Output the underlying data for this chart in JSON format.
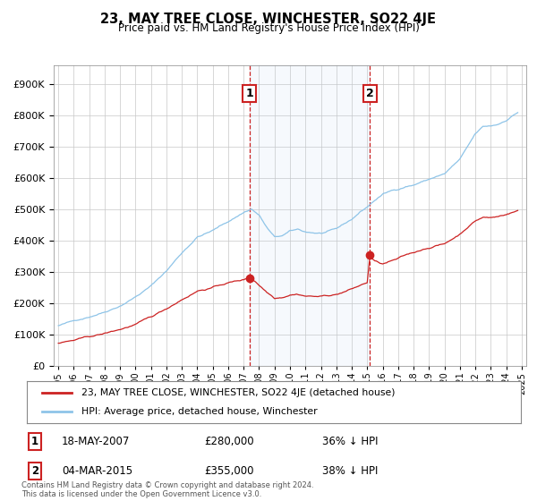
{
  "title": "23, MAY TREE CLOSE, WINCHESTER, SO22 4JE",
  "subtitle": "Price paid vs. HM Land Registry's House Price Index (HPI)",
  "hpi_color": "#8ec4e8",
  "price_color": "#cc2222",
  "bg_color": "#ffffff",
  "plot_bg_color": "#ffffff",
  "grid_color": "#c8c8c8",
  "purchase1_date": "18-MAY-2007",
  "purchase1_price": 280000,
  "purchase1_label": "36% ↓ HPI",
  "purchase2_date": "04-MAR-2015",
  "purchase2_price": 355000,
  "purchase2_label": "38% ↓ HPI",
  "purchase1_year": 2007.37,
  "purchase2_year": 2015.17,
  "yticks": [
    0,
    100000,
    200000,
    300000,
    400000,
    500000,
    600000,
    700000,
    800000,
    900000
  ],
  "ylim": [
    0,
    960000
  ],
  "xlim_start": 1994.7,
  "xlim_end": 2025.3,
  "legend_label1": "23, MAY TREE CLOSE, WINCHESTER, SO22 4JE (detached house)",
  "legend_label2": "HPI: Average price, detached house, Winchester",
  "footer": "Contains HM Land Registry data © Crown copyright and database right 2024.\nThis data is licensed under the Open Government Licence v3.0."
}
